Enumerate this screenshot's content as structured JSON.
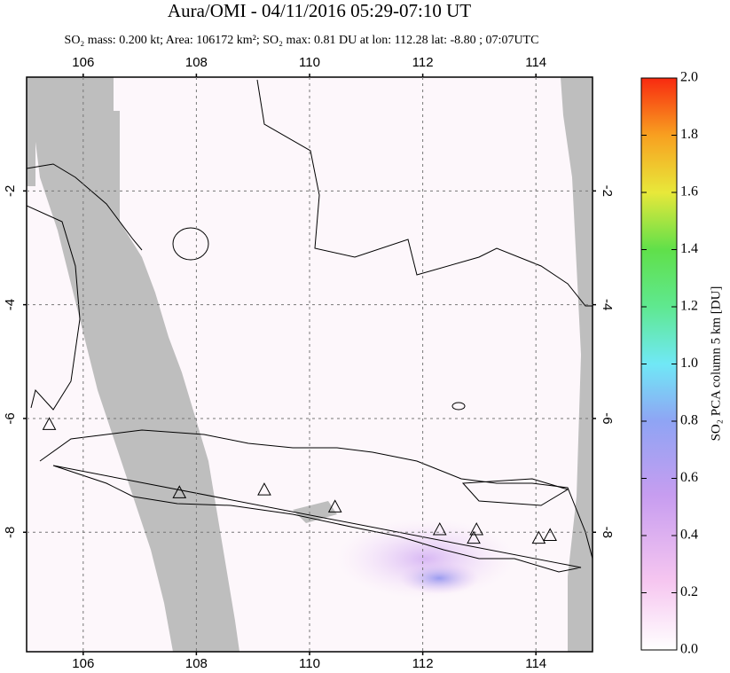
{
  "chart_data": {
    "type": "map",
    "title": "Aura/OMI - 04/11/2016 05:29-07:10 UT",
    "subtitle": "SO₂ mass: 0.200 kt; Area: 106172 km²; SO₂ max: 0.81 DU at lon: 112.28 lat: -8.80 ; 07:07UTC",
    "xlim": [
      105,
      115
    ],
    "xticks": [
      106,
      108,
      110,
      112,
      114
    ],
    "ylim": [
      -10.1,
      0
    ],
    "yticks": [
      -2,
      -4,
      -6,
      -8
    ],
    "grid": true,
    "x": [
      105.4,
      107.7,
      109.2,
      110.45,
      112.3,
      112.95,
      112.9,
      114.05,
      114.25
    ],
    "y": [
      -6.1,
      -7.3,
      -7.25,
      -7.55,
      -7.95,
      -7.95,
      -8.1,
      -8.1,
      -8.05
    ],
    "colorbar": {
      "label": "SO₂ PCA column 5 km [DU]",
      "lim": [
        0,
        2
      ],
      "ticks": [
        {
          "value": 0,
          "label": "0.0"
        },
        {
          "value": 0.2,
          "label": "0.2"
        },
        {
          "value": 0.4,
          "label": "0.4"
        },
        {
          "value": 0.6,
          "label": "0.6"
        },
        {
          "value": 0.8,
          "label": "0.8"
        },
        {
          "value": 1,
          "label": "1.0"
        },
        {
          "value": 1.2,
          "label": "1.2"
        },
        {
          "value": 1.4,
          "label": "1.4"
        },
        {
          "value": 1.6,
          "label": "1.6"
        },
        {
          "value": 1.8,
          "label": "1.8"
        },
        {
          "value": 2,
          "label": "2.0"
        }
      ]
    }
  }
}
